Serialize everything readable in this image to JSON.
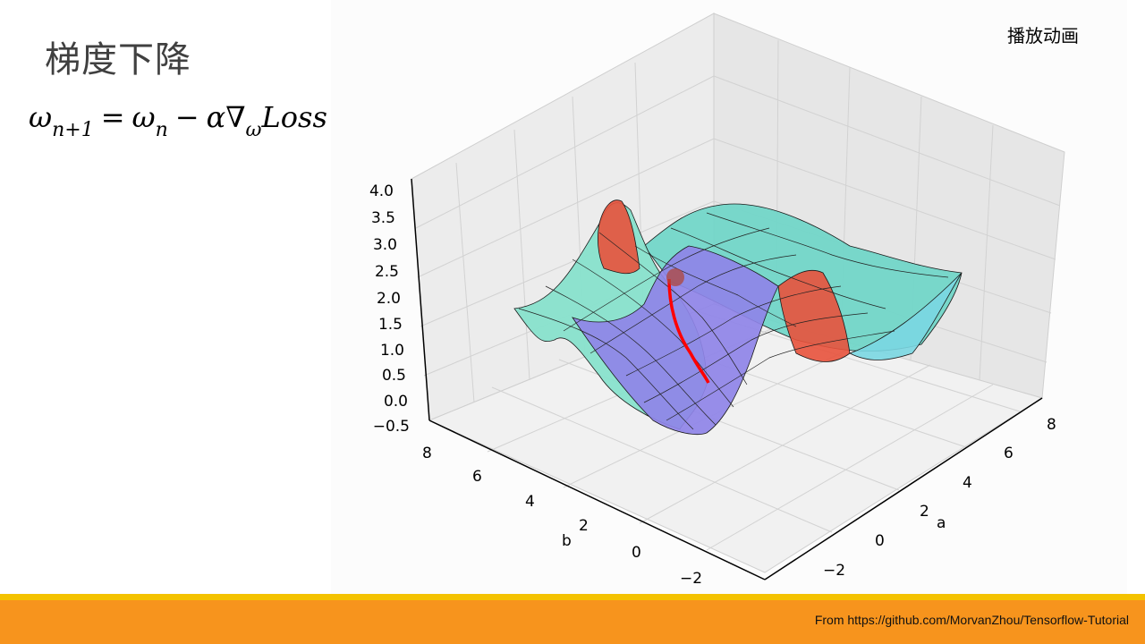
{
  "slide": {
    "title": "梯度下降",
    "play_label": "播放动画",
    "formula": {
      "lhs": "ω",
      "lhs_sub": "n+1",
      "equals": "=",
      "rhs1": "ω",
      "rhs1_sub": "n",
      "minus": "−",
      "alpha_grad": "α∇",
      "grad_sub": "ω",
      "loss": "Loss"
    },
    "credit": "From https://github.com/MorvanZhou/Tensorflow-Tutorial"
  },
  "chart_data": {
    "type": "surface3d",
    "z_ticks": [
      "4.0",
      "3.5",
      "3.0",
      "2.5",
      "2.0",
      "1.5",
      "1.0",
      "0.5",
      "0.0",
      "−0.5"
    ],
    "a_ticks": [
      "8",
      "6",
      "4",
      "2",
      "0",
      "−2"
    ],
    "b_ticks": [
      "8",
      "6",
      "4",
      "2",
      "0",
      "−2"
    ],
    "a_label": "a",
    "b_label": "b",
    "zlim": [
      -0.5,
      4.0
    ],
    "colormap": "rainbow",
    "path_color": "#ff0000"
  }
}
